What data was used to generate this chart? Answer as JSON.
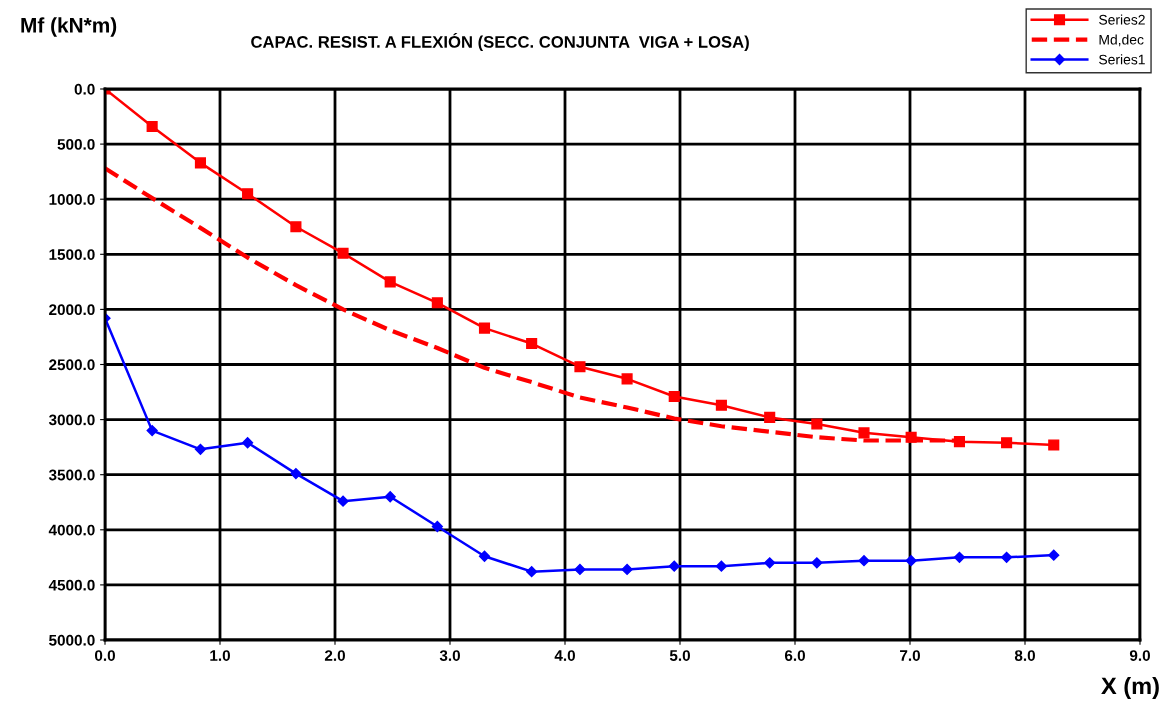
{
  "chart_data": {
    "type": "line",
    "title": "CAPAC. RESIST. A FLEXIÓN (SECC. CONJUNTA  VIGA + LOSA)",
    "xlabel": "X (m)",
    "ylabel": "Mf (kN*m)",
    "series": [
      {
        "name": "Series2",
        "color": "#ff0000",
        "marker": "square",
        "line_style": "solid",
        "x": [
          0,
          0.41,
          0.83,
          1.24,
          1.66,
          2.07,
          2.48,
          2.89,
          3.3,
          3.71,
          4.13,
          4.54,
          4.95,
          5.36,
          5.78,
          6.19,
          6.6,
          7.01,
          7.43,
          7.84,
          8.25
        ],
        "values": [
          0,
          340,
          670,
          950,
          1250,
          1490,
          1750,
          1940,
          2170,
          2310,
          2520,
          2630,
          2790,
          2870,
          2980,
          3040,
          3120,
          3160,
          3200,
          3210,
          3230
        ]
      },
      {
        "name": "Md,dec",
        "color": "#ff0000",
        "marker": "none",
        "line_style": "dashed",
        "x": [
          0,
          0.41,
          0.83,
          1.24,
          1.66,
          2.07,
          2.48,
          2.89,
          3.3,
          3.71,
          4.13,
          4.54,
          4.95,
          5.36,
          5.78,
          6.19,
          6.6,
          7.01,
          7.43
        ],
        "values": [
          720,
          990,
          1260,
          1530,
          1780,
          2000,
          2190,
          2350,
          2530,
          2660,
          2800,
          2890,
          2990,
          3060,
          3110,
          3160,
          3190,
          3190,
          3190
        ]
      },
      {
        "name": "Series1",
        "color": "#0000ff",
        "marker": "diamond",
        "line_style": "solid",
        "x": [
          0,
          0.41,
          0.83,
          1.24,
          1.66,
          2.07,
          2.48,
          2.89,
          3.3,
          3.71,
          4.13,
          4.54,
          4.95,
          5.36,
          5.78,
          6.19,
          6.6,
          7.01,
          7.43,
          7.84,
          8.25
        ],
        "values": [
          2080,
          3100,
          3270,
          3210,
          3490,
          3740,
          3700,
          3970,
          4240,
          4380,
          4360,
          4360,
          4330,
          4330,
          4300,
          4300,
          4280,
          4280,
          4250,
          4250,
          4230
        ]
      }
    ],
    "xlim": [
      0,
      9
    ],
    "xticks": [
      {
        "value": 0,
        "label": "0.0"
      },
      {
        "value": 1,
        "label": "1.0"
      },
      {
        "value": 2,
        "label": "2.0"
      },
      {
        "value": 3,
        "label": "3.0"
      },
      {
        "value": 4,
        "label": "4.0"
      },
      {
        "value": 5,
        "label": "5.0"
      },
      {
        "value": 6,
        "label": "6.0"
      },
      {
        "value": 7,
        "label": "7.0"
      },
      {
        "value": 8,
        "label": "8.0"
      },
      {
        "value": 9,
        "label": "9.0"
      }
    ],
    "ylim": [
      5000,
      0
    ],
    "yticks": [
      {
        "value": 0,
        "label": "0.0"
      },
      {
        "value": 500,
        "label": "500.0"
      },
      {
        "value": 1000,
        "label": "1000.0"
      },
      {
        "value": 1500,
        "label": "1500.0"
      },
      {
        "value": 2000,
        "label": "2000.0"
      },
      {
        "value": 2500,
        "label": "2500.0"
      },
      {
        "value": 3000,
        "label": "3000.0"
      },
      {
        "value": 3500,
        "label": "3500.0"
      },
      {
        "value": 4000,
        "label": "4000.0"
      },
      {
        "value": 4500,
        "label": "4500.0"
      },
      {
        "value": 5000,
        "label": "5000.0"
      }
    ],
    "grid": true,
    "legend": "top right"
  }
}
